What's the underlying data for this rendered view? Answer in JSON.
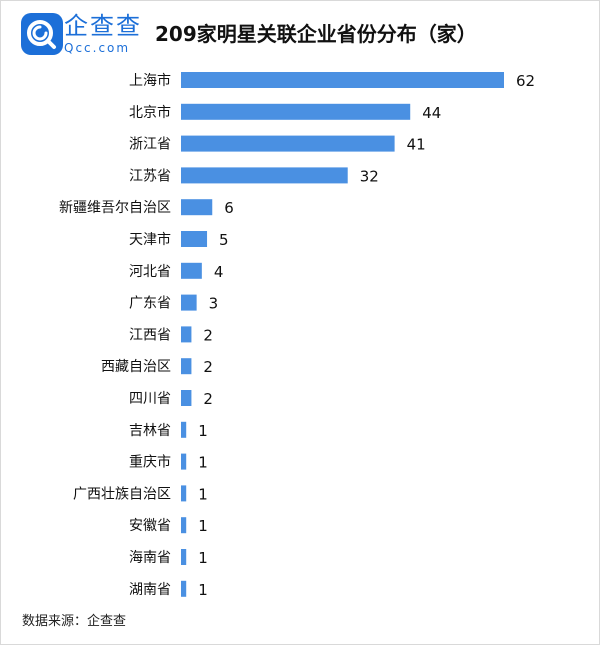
{
  "header": {
    "logo_name": "企查查",
    "logo_domain": "Qcc.com",
    "title": "209家明星关联企业省份分布（家）"
  },
  "footer": {
    "source": "数据来源：企查查"
  },
  "colors": {
    "bar": "#4a90e2",
    "logo": "#1c6fd8"
  },
  "chart_data": {
    "type": "bar",
    "orientation": "horizontal",
    "title": "209家明星关联企业省份分布（家）",
    "categories": [
      "上海市",
      "北京市",
      "浙江省",
      "江苏省",
      "新疆维吾尔自治区",
      "天津市",
      "河北省",
      "广东省",
      "江西省",
      "西藏自治区",
      "四川省",
      "吉林省",
      "重庆市",
      "广西壮族自治区",
      "安徽省",
      "海南省",
      "湖南省"
    ],
    "values": [
      62,
      44,
      41,
      32,
      6,
      5,
      4,
      3,
      2,
      2,
      2,
      1,
      1,
      1,
      1,
      1,
      1
    ],
    "xlim": [
      0,
      62
    ],
    "grid": false,
    "legend": "none",
    "data_labels": true
  }
}
